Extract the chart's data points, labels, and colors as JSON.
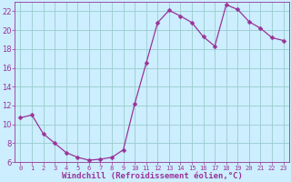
{
  "x": [
    0,
    1,
    2,
    3,
    4,
    5,
    6,
    7,
    8,
    9,
    10,
    11,
    12,
    13,
    14,
    15,
    16,
    17,
    18,
    19,
    20,
    21,
    22,
    23
  ],
  "y": [
    10.7,
    11.0,
    9.0,
    8.0,
    7.0,
    6.5,
    6.2,
    6.3,
    6.5,
    7.3,
    12.2,
    16.5,
    20.8,
    22.1,
    21.5,
    20.8,
    19.3,
    18.3,
    22.7,
    22.2,
    20.9,
    20.2,
    19.2,
    18.9
  ],
  "line_color": "#993399",
  "marker": "D",
  "marker_size": 2.5,
  "bg_color": "#cceeff",
  "grid_color": "#99cccc",
  "xlabel": "Windchill (Refroidissement éolien,°C)",
  "xlabel_color": "#993399",
  "tick_color": "#993399",
  "spine_color": "#993399",
  "ylim": [
    6,
    23
  ],
  "xlim": [
    -0.5,
    23.5
  ],
  "yticks": [
    6,
    8,
    10,
    12,
    14,
    16,
    18,
    20,
    22
  ],
  "xticks": [
    0,
    1,
    2,
    3,
    4,
    5,
    6,
    7,
    8,
    9,
    10,
    11,
    12,
    13,
    14,
    15,
    16,
    17,
    18,
    19,
    20,
    21,
    22,
    23
  ],
  "xlabel_fontsize": 6.5,
  "xlabel_fontweight": "bold",
  "xtick_fontsize": 5.0,
  "ytick_fontsize": 6.0
}
